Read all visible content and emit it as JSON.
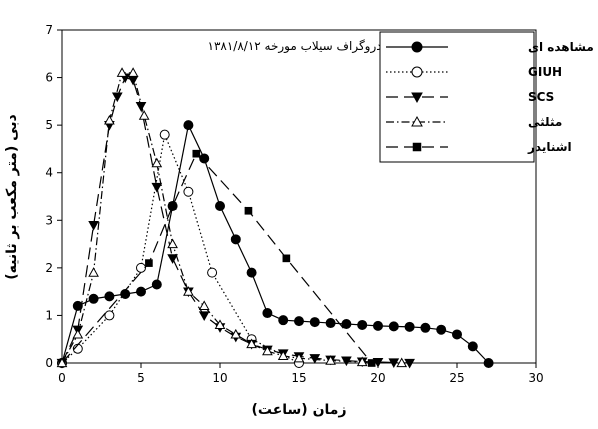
{
  "chart_data": {
    "type": "line",
    "title": "هیدروگراف سیلاب مورخه ۱۳۸۱/۸/۱۲",
    "xlabel": "زمان (ساعت)",
    "ylabel": "دبی (متر مکعب بر ثانیه)",
    "xlim": [
      0,
      30
    ],
    "ylim": [
      0,
      7
    ],
    "xticks": [
      0,
      5,
      10,
      15,
      20,
      25,
      30
    ],
    "yticks": [
      0,
      1,
      2,
      3,
      4,
      5,
      6,
      7
    ],
    "grid": false,
    "legend_position": "top-right",
    "series": [
      {
        "name": "مشاهده ای",
        "marker": "circle-filled",
        "line": "solid",
        "x": [
          0,
          1,
          2,
          3,
          4,
          5,
          6,
          7,
          8,
          9,
          10,
          11,
          12,
          13,
          14,
          15,
          16,
          17,
          18,
          19,
          20,
          21,
          22,
          23,
          24,
          25,
          26,
          27
        ],
        "y": [
          0,
          1.2,
          1.35,
          1.4,
          1.45,
          1.5,
          1.65,
          3.3,
          5.0,
          4.3,
          3.3,
          2.6,
          1.9,
          1.05,
          0.9,
          0.88,
          0.86,
          0.84,
          0.82,
          0.8,
          0.78,
          0.77,
          0.76,
          0.74,
          0.7,
          0.6,
          0.35,
          0
        ]
      },
      {
        "name": "GIUH",
        "marker": "circle-open",
        "line": "dotted",
        "x": [
          0,
          1,
          3,
          5,
          6.5,
          8,
          9.5,
          12,
          15
        ],
        "y": [
          0,
          0.3,
          1.0,
          2.0,
          4.8,
          3.6,
          1.9,
          0.5,
          0
        ]
      },
      {
        "name": "SCS",
        "marker": "triangle-down-filled",
        "line": "long-dash",
        "x": [
          0,
          1,
          2,
          3,
          3.5,
          4,
          4.5,
          5,
          6,
          7,
          8,
          9,
          10,
          11,
          12,
          13,
          14,
          15,
          16,
          17,
          18,
          19,
          20,
          21,
          22
        ],
        "y": [
          0,
          0.7,
          2.9,
          5.0,
          5.6,
          6.0,
          5.95,
          5.4,
          3.7,
          2.2,
          1.5,
          1.0,
          0.75,
          0.55,
          0.4,
          0.28,
          0.2,
          0.14,
          0.1,
          0.07,
          0.05,
          0.03,
          0.02,
          0.01,
          0
        ]
      },
      {
        "name": "مثلثی",
        "marker": "triangle-up-open",
        "line": "dash-dot",
        "x": [
          0,
          1,
          2,
          3,
          3.8,
          4.5,
          5.2,
          6,
          7,
          8,
          9,
          10,
          11,
          12,
          13,
          14,
          15,
          17,
          19,
          21.5
        ],
        "y": [
          0,
          0.6,
          1.9,
          5.1,
          6.1,
          6.1,
          5.2,
          4.2,
          2.5,
          1.5,
          1.2,
          0.8,
          0.6,
          0.4,
          0.25,
          0.15,
          0.1,
          0.05,
          0.02,
          0
        ]
      },
      {
        "name": "اشنایدر",
        "marker": "square-filled",
        "line": "long-dash",
        "x": [
          0,
          5.5,
          7,
          8.5,
          11.8,
          14.2,
          19.6
        ],
        "y": [
          0,
          2.1,
          3.3,
          4.4,
          3.2,
          2.2,
          0
        ]
      }
    ]
  }
}
